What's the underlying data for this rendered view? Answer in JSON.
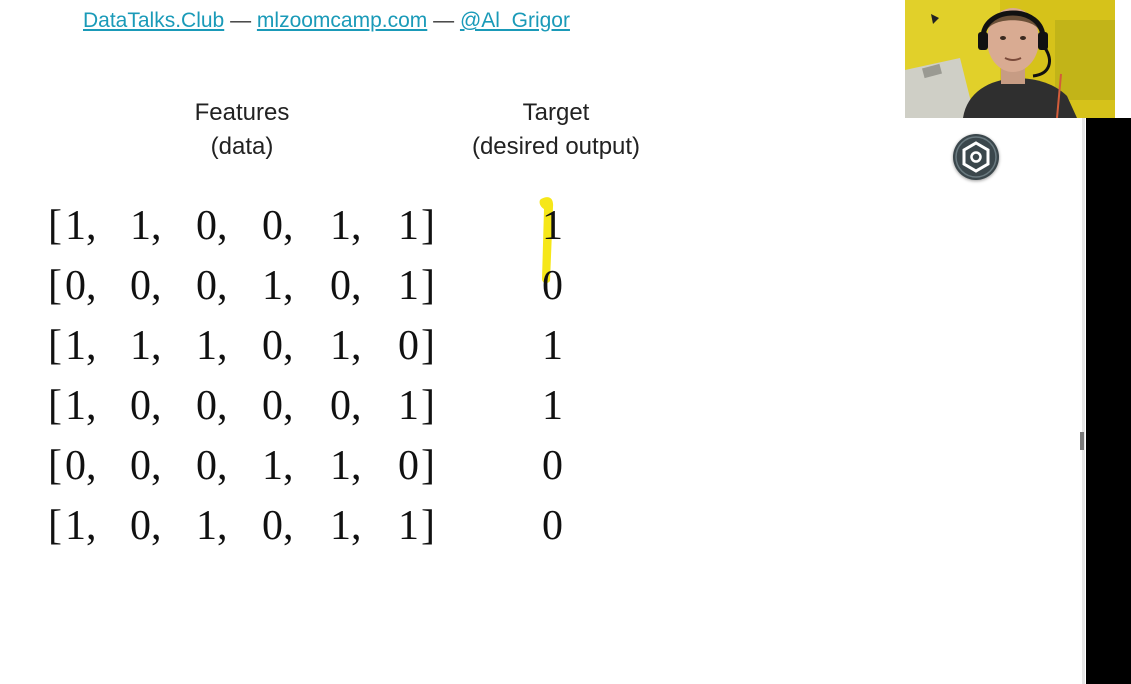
{
  "header": {
    "link1": "DataTalks.Club",
    "sep1": " — ",
    "link2": "mlzoomcamp.com",
    "sep2": " — ",
    "link3": "@Al_Grigor"
  },
  "features_heading": {
    "line1": "Features",
    "line2": "(data)"
  },
  "target_heading": {
    "line1": "Target",
    "line2": "(desired output)"
  },
  "rows": [
    {
      "features": [
        "1",
        "1",
        "0",
        "0",
        "1",
        "1"
      ],
      "target": "1"
    },
    {
      "features": [
        "0",
        "0",
        "0",
        "1",
        "0",
        "1"
      ],
      "target": "0"
    },
    {
      "features": [
        "1",
        "1",
        "1",
        "0",
        "1",
        "0"
      ],
      "target": "1"
    },
    {
      "features": [
        "1",
        "0",
        "0",
        "0",
        "0",
        "1"
      ],
      "target": "1"
    },
    {
      "features": [
        "0",
        "0",
        "0",
        "1",
        "1",
        "0"
      ],
      "target": "0"
    },
    {
      "features": [
        "1",
        "0",
        "1",
        "0",
        "1",
        "1"
      ],
      "target": "0"
    }
  ],
  "brackets": {
    "open": "[",
    "close": "]",
    "comma": ","
  },
  "colors": {
    "link": "#1a9ab8",
    "highlight": "#f5e400",
    "settings_button": "#3b474c",
    "webcam_wall": "#d8c41c"
  },
  "icons": {
    "settings": "hexagon-settings-icon"
  }
}
